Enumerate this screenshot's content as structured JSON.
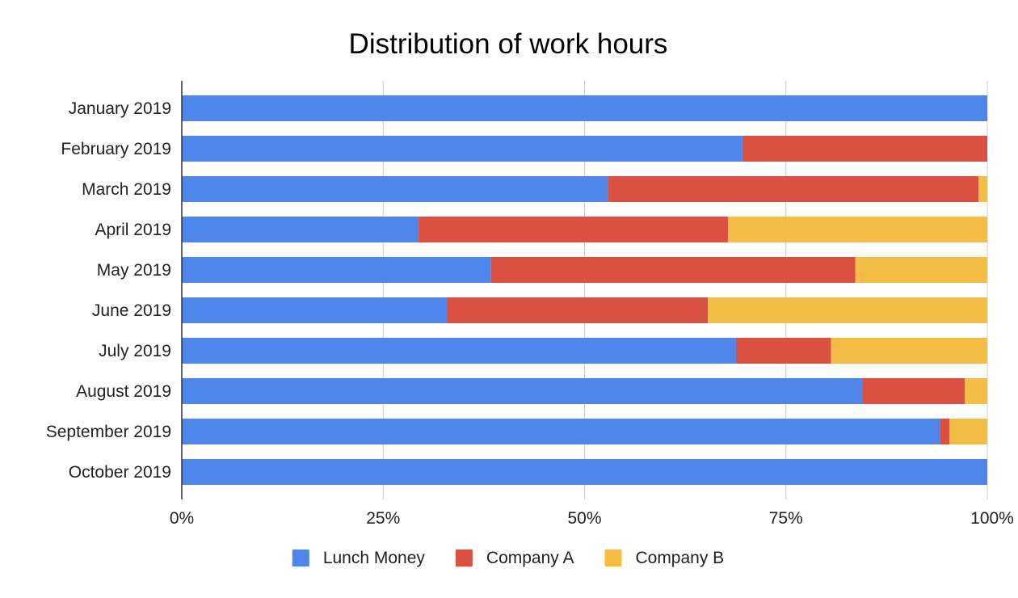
{
  "chart_data": {
    "type": "bar",
    "orientation": "horizontal",
    "stacked": "percent",
    "title": "Distribution of work hours",
    "xlabel": "",
    "ylabel": "",
    "xlim": [
      0,
      100
    ],
    "x_ticks": [
      "0%",
      "25%",
      "50%",
      "75%",
      "100%"
    ],
    "grid": true,
    "legend_position": "bottom",
    "categories": [
      "January 2019",
      "February 2019",
      "March 2019",
      "April 2019",
      "May 2019",
      "June 2019",
      "July 2019",
      "August 2019",
      "September 2019",
      "October 2019"
    ],
    "series": [
      {
        "name": "Lunch Money",
        "color": "#4f86ea",
        "values": [
          100,
          69.6,
          52.9,
          29.4,
          38.4,
          32.9,
          68.8,
          84.5,
          94.1,
          100
        ]
      },
      {
        "name": "Company A",
        "color": "#da5142",
        "values": [
          0,
          30.4,
          46.0,
          38.4,
          45.2,
          32.4,
          11.8,
          12.7,
          1.2,
          0
        ]
      },
      {
        "name": "Company B",
        "color": "#f4be46",
        "values": [
          0,
          0,
          1.1,
          32.2,
          16.4,
          34.7,
          19.4,
          2.8,
          4.7,
          0
        ]
      }
    ]
  }
}
